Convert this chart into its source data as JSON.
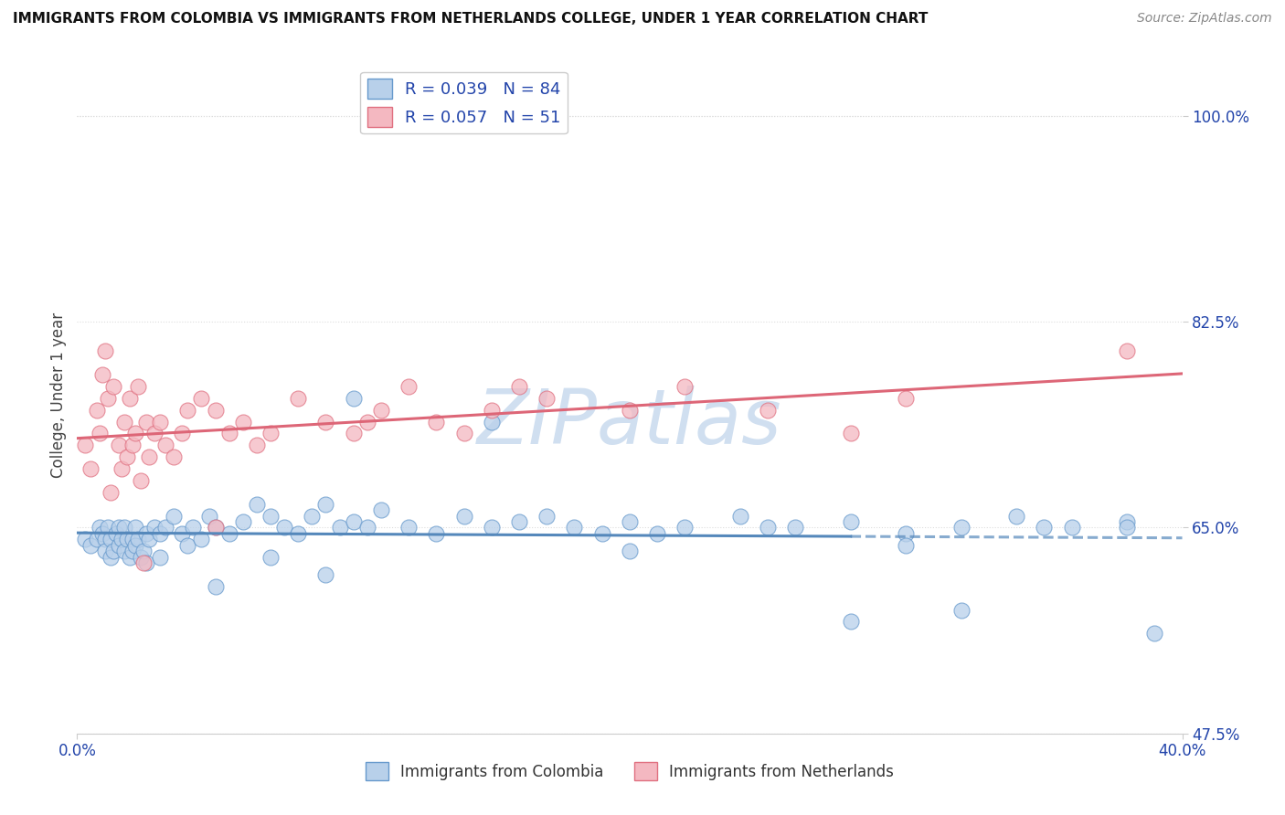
{
  "title": "IMMIGRANTS FROM COLOMBIA VS IMMIGRANTS FROM NETHERLANDS COLLEGE, UNDER 1 YEAR CORRELATION CHART",
  "source": "Source: ZipAtlas.com",
  "ylabel_label": "College, Under 1 year",
  "ytick_vals": [
    47.5,
    65.0,
    82.5,
    100.0
  ],
  "ytick_labels": [
    "47.5%",
    "65.0%",
    "82.5%",
    "100.0%"
  ],
  "xlim": [
    0.0,
    40.0
  ],
  "ylim": [
    55.0,
    105.0
  ],
  "colombia_R": 0.039,
  "colombia_N": 84,
  "netherlands_R": 0.057,
  "netherlands_N": 51,
  "colombia_color": "#b8d0ea",
  "netherlands_color": "#f4b8c1",
  "colombia_edge_color": "#6699cc",
  "netherlands_edge_color": "#e07080",
  "colombia_line_color": "#5588bb",
  "netherlands_line_color": "#dd6677",
  "legend_text_color": "#2244aa",
  "title_color": "#111111",
  "watermark_color": "#d0dff0",
  "background_color": "#ffffff",
  "grid_color": "#dddddd",
  "colombia_x": [
    0.3,
    0.5,
    0.7,
    0.8,
    0.9,
    1.0,
    1.0,
    1.1,
    1.2,
    1.2,
    1.3,
    1.4,
    1.5,
    1.5,
    1.6,
    1.7,
    1.7,
    1.8,
    1.9,
    2.0,
    2.0,
    2.1,
    2.1,
    2.2,
    2.3,
    2.4,
    2.5,
    2.5,
    2.6,
    2.8,
    3.0,
    3.0,
    3.2,
    3.5,
    3.8,
    4.0,
    4.2,
    4.5,
    4.8,
    5.0,
    5.5,
    6.0,
    6.5,
    7.0,
    7.5,
    8.0,
    8.5,
    9.0,
    9.5,
    10.0,
    10.5,
    11.0,
    12.0,
    13.0,
    14.0,
    15.0,
    16.0,
    17.0,
    18.0,
    19.0,
    20.0,
    21.0,
    22.0,
    24.0,
    26.0,
    28.0,
    30.0,
    32.0,
    34.0,
    36.0,
    38.0,
    39.0,
    10.0,
    15.0,
    20.0,
    25.0,
    30.0,
    35.0,
    38.0,
    28.0,
    32.0,
    5.0,
    7.0,
    9.0
  ],
  "colombia_y": [
    64.0,
    63.5,
    64.0,
    65.0,
    64.5,
    64.0,
    63.0,
    65.0,
    64.0,
    62.5,
    63.0,
    64.5,
    65.0,
    63.5,
    64.0,
    65.0,
    63.0,
    64.0,
    62.5,
    64.0,
    63.0,
    65.0,
    63.5,
    64.0,
    62.5,
    63.0,
    64.5,
    62.0,
    64.0,
    65.0,
    64.5,
    62.5,
    65.0,
    66.0,
    64.5,
    63.5,
    65.0,
    64.0,
    66.0,
    65.0,
    64.5,
    65.5,
    67.0,
    66.0,
    65.0,
    64.5,
    66.0,
    67.0,
    65.0,
    65.5,
    65.0,
    66.5,
    65.0,
    64.5,
    66.0,
    65.0,
    65.5,
    66.0,
    65.0,
    64.5,
    65.5,
    64.5,
    65.0,
    66.0,
    65.0,
    65.5,
    64.5,
    65.0,
    66.0,
    65.0,
    65.5,
    56.0,
    76.0,
    74.0,
    63.0,
    65.0,
    63.5,
    65.0,
    65.0,
    57.0,
    58.0,
    60.0,
    62.5,
    61.0
  ],
  "netherlands_x": [
    0.3,
    0.5,
    0.7,
    0.8,
    0.9,
    1.0,
    1.1,
    1.2,
    1.3,
    1.5,
    1.6,
    1.7,
    1.8,
    1.9,
    2.0,
    2.1,
    2.2,
    2.3,
    2.5,
    2.6,
    2.8,
    3.0,
    3.2,
    3.5,
    3.8,
    4.0,
    4.5,
    5.0,
    5.5,
    6.0,
    6.5,
    7.0,
    8.0,
    9.0,
    10.0,
    11.0,
    12.0,
    13.0,
    14.0,
    15.0,
    16.0,
    17.0,
    20.0,
    22.0,
    25.0,
    28.0,
    30.0,
    10.5,
    38.0,
    5.0,
    2.4
  ],
  "netherlands_y": [
    72.0,
    70.0,
    75.0,
    73.0,
    78.0,
    80.0,
    76.0,
    68.0,
    77.0,
    72.0,
    70.0,
    74.0,
    71.0,
    76.0,
    72.0,
    73.0,
    77.0,
    69.0,
    74.0,
    71.0,
    73.0,
    74.0,
    72.0,
    71.0,
    73.0,
    75.0,
    76.0,
    75.0,
    73.0,
    74.0,
    72.0,
    73.0,
    76.0,
    74.0,
    73.0,
    75.0,
    77.0,
    74.0,
    73.0,
    75.0,
    77.0,
    76.0,
    75.0,
    77.0,
    75.0,
    73.0,
    76.0,
    74.0,
    80.0,
    65.0,
    62.0
  ]
}
